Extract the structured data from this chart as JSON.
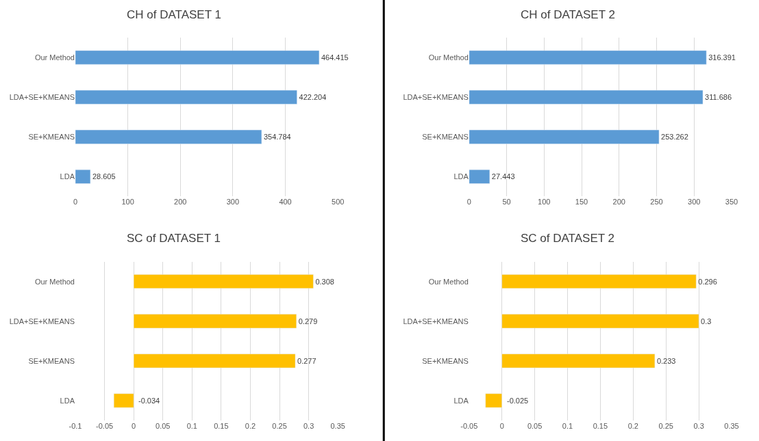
{
  "chart_data": [
    {
      "type": "bar",
      "orientation": "horizontal",
      "title": "CH of DATASET 1",
      "categories": [
        "Our Method",
        "LDA+SE+KMEANS",
        "SE+KMEANS",
        "LDA"
      ],
      "values": [
        464.415,
        422.204,
        354.784,
        28.605
      ],
      "color": "#5b9bd5",
      "xlim": [
        0,
        500
      ],
      "xticks": [
        0,
        100,
        200,
        300,
        400,
        500
      ],
      "grid": "x",
      "data_labels": true
    },
    {
      "type": "bar",
      "orientation": "horizontal",
      "title": "CH of DATASET 2",
      "categories": [
        "Our Method",
        "LDA+SE+KMEANS",
        "SE+KMEANS",
        "LDA"
      ],
      "values": [
        316.391,
        311.686,
        253.262,
        27.443
      ],
      "color": "#5b9bd5",
      "xlim": [
        0,
        350
      ],
      "xticks": [
        0,
        50,
        100,
        150,
        200,
        250,
        300,
        350
      ],
      "grid": "x",
      "data_labels": true
    },
    {
      "type": "bar",
      "orientation": "horizontal",
      "title": "SC of DATASET 1",
      "categories": [
        "Our Method",
        "LDA+SE+KMEANS",
        "SE+KMEANS",
        "LDA"
      ],
      "values": [
        0.308,
        0.279,
        0.277,
        -0.034
      ],
      "color": "#ffc000",
      "xlim": [
        -0.1,
        0.35
      ],
      "xticks": [
        -0.1,
        -0.05,
        0,
        0.05,
        0.1,
        0.15,
        0.2,
        0.25,
        0.3,
        0.35
      ],
      "grid": "x",
      "data_labels": true
    },
    {
      "type": "bar",
      "orientation": "horizontal",
      "title": "SC of DATASET 2",
      "categories": [
        "Our Method",
        "LDA+SE+KMEANS",
        "SE+KMEANS",
        "LDA"
      ],
      "values": [
        0.296,
        0.3,
        0.233,
        -0.025
      ],
      "color": "#ffc000",
      "xlim": [
        -0.05,
        0.35
      ],
      "xticks": [
        -0.05,
        0,
        0.05,
        0.1,
        0.15,
        0.2,
        0.25,
        0.3,
        0.35
      ],
      "grid": "x",
      "data_labels": true
    }
  ]
}
